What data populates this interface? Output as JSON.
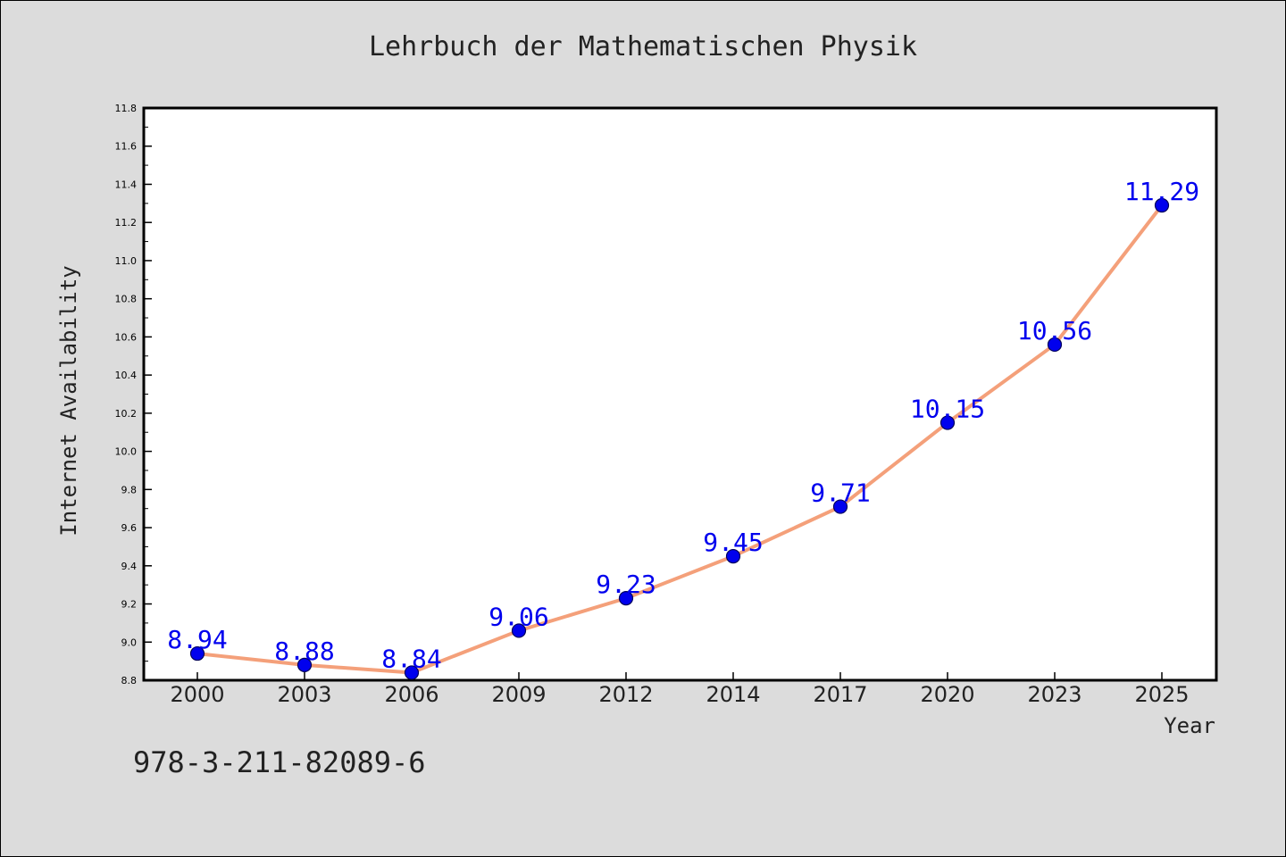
{
  "chart_data": {
    "type": "line",
    "title": "Lehrbuch der Mathematischen Physik",
    "xlabel": "Year",
    "ylabel": "Internet Availability",
    "categories": [
      "2000",
      "2003",
      "2006",
      "2009",
      "2012",
      "2014",
      "2017",
      "2020",
      "2023",
      "2025"
    ],
    "values": [
      8.94,
      8.88,
      8.84,
      9.06,
      9.23,
      9.45,
      9.71,
      10.15,
      10.56,
      11.29
    ],
    "data_labels": [
      "8.94",
      "8.88",
      "8.84",
      "9.06",
      "9.23",
      "9.45",
      "9.71",
      "10.15",
      "10.56",
      "11.29"
    ],
    "ylim": [
      8.8,
      11.8
    ],
    "yticks": [
      "8.8",
      "9.0",
      "9.2",
      "9.4",
      "9.6",
      "9.8",
      "10.0",
      "10.2",
      "10.4",
      "10.6",
      "10.8",
      "11.0",
      "11.2",
      "11.4",
      "11.6",
      "11.8"
    ],
    "grid": false,
    "line_color": "#f4a07a",
    "marker_color": "#0000ee",
    "label_color": "#0000ee"
  },
  "footer": {
    "isbn": "978-3-211-82089-6"
  }
}
